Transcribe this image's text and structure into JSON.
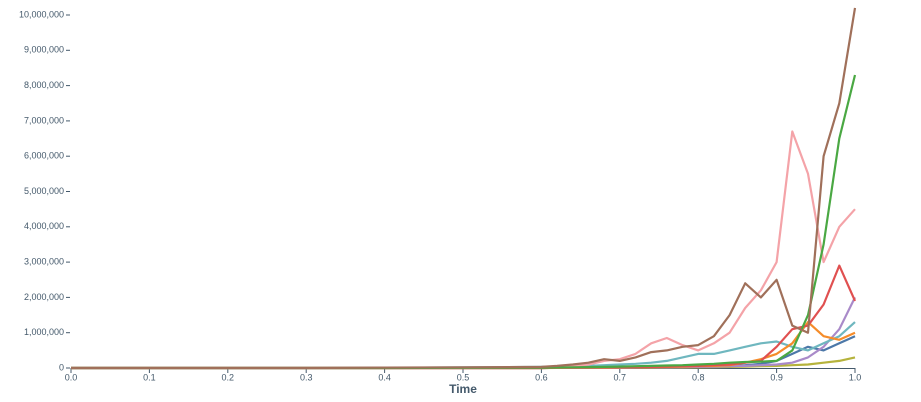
{
  "chart_data": {
    "type": "line",
    "x_label": "Time",
    "x": [
      0,
      0.1,
      0.2,
      0.3,
      0.4,
      0.5,
      0.6,
      0.62,
      0.64,
      0.66,
      0.68,
      0.7,
      0.72,
      0.74,
      0.76,
      0.78,
      0.8,
      0.82,
      0.84,
      0.86,
      0.88,
      0.9,
      0.92,
      0.94,
      0.96,
      0.98,
      1.0
    ],
    "xlim": [
      0,
      1
    ],
    "xticks": [
      {
        "value": 0,
        "label": "0.0"
      },
      0.1,
      0.2,
      0.3,
      0.4,
      0.5,
      0.6,
      0.7,
      0.8,
      0.9,
      {
        "value": 1,
        "label": "1.0"
      }
    ],
    "ylim": [
      0,
      10000000
    ],
    "yticks": [
      0,
      {
        "value": 1000000,
        "label": "1,000,000"
      },
      {
        "value": 2000000,
        "label": "2,000,000"
      },
      {
        "value": 3000000,
        "label": "3,000,000"
      },
      {
        "value": 4000000,
        "label": "4,000,000"
      },
      {
        "value": 5000000,
        "label": "5,000,000"
      },
      {
        "value": 6000000,
        "label": "6,000,000"
      },
      {
        "value": 7000000,
        "label": "7,000,000"
      },
      {
        "value": 8000000,
        "label": "8,000,000"
      },
      {
        "value": 9000000,
        "label": "9,000,000"
      },
      {
        "value": 10000000,
        "label": "10,000,000"
      }
    ],
    "series": [
      {
        "color": "#b5b33c",
        "values": [
          0,
          0,
          0,
          0,
          0,
          0,
          0,
          2000,
          3000,
          4000,
          5000,
          6000,
          8000,
          10000,
          12000,
          15000,
          20000,
          25000,
          30000,
          40000,
          50000,
          60000,
          80000,
          100000,
          150000,
          200000,
          300000
        ]
      },
      {
        "color": "#4c78a8",
        "values": [
          0,
          0,
          0,
          0,
          0,
          0,
          0,
          5000,
          5000,
          8000,
          10000,
          12000,
          15000,
          20000,
          25000,
          30000,
          40000,
          50000,
          60000,
          80000,
          120000,
          200000,
          400000,
          600000,
          500000,
          700000,
          900000
        ]
      },
      {
        "color": "#a98ac9",
        "values": [
          0,
          0,
          0,
          0,
          0,
          0,
          0,
          5000,
          5000,
          8000,
          10000,
          10000,
          15000,
          20000,
          20000,
          25000,
          30000,
          40000,
          50000,
          60000,
          80000,
          100000,
          150000,
          300000,
          600000,
          1100000,
          2000000
        ]
      },
      {
        "color": "#6fb7bf",
        "values": [
          0,
          0,
          0,
          0,
          5000,
          20000,
          30000,
          40000,
          50000,
          60000,
          80000,
          100000,
          120000,
          150000,
          200000,
          300000,
          400000,
          400000,
          500000,
          600000,
          700000,
          750000,
          600000,
          500000,
          700000,
          900000,
          1300000
        ]
      },
      {
        "color": "#f58c2a",
        "values": [
          0,
          0,
          0,
          0,
          0,
          0,
          0,
          5000,
          8000,
          10000,
          12000,
          15000,
          20000,
          25000,
          30000,
          40000,
          50000,
          60000,
          80000,
          150000,
          250000,
          400000,
          700000,
          1300000,
          900000,
          800000,
          1000000
        ]
      },
      {
        "color": "#e05050",
        "values": [
          0,
          0,
          0,
          0,
          0,
          0,
          0,
          10000,
          10000,
          15000,
          20000,
          20000,
          25000,
          30000,
          40000,
          50000,
          60000,
          80000,
          100000,
          150000,
          200000,
          600000,
          1100000,
          1200000,
          1800000,
          2900000,
          1900000
        ]
      },
      {
        "color": "#f4a3a8",
        "values": [
          0,
          0,
          0,
          0,
          5000,
          10000,
          20000,
          40000,
          60000,
          100000,
          200000,
          250000,
          400000,
          700000,
          850000,
          650000,
          500000,
          700000,
          1000000,
          1700000,
          2200000,
          3000000,
          6700000,
          5500000,
          3000000,
          4000000,
          4500000
        ]
      },
      {
        "color": "#4aa843",
        "values": [
          0,
          0,
          0,
          0,
          0,
          5000,
          10000,
          15000,
          20000,
          25000,
          30000,
          40000,
          50000,
          60000,
          70000,
          80000,
          100000,
          120000,
          150000,
          170000,
          180000,
          200000,
          500000,
          1500000,
          3500000,
          6500000,
          8300000
        ]
      },
      {
        "color": "#a0705a",
        "values": [
          0,
          0,
          0,
          0,
          10000,
          20000,
          30000,
          60000,
          100000,
          150000,
          250000,
          200000,
          300000,
          450000,
          500000,
          600000,
          650000,
          900000,
          1500000,
          2400000,
          2000000,
          2500000,
          1200000,
          1000000,
          6000000,
          7500000,
          10200000
        ]
      }
    ]
  }
}
